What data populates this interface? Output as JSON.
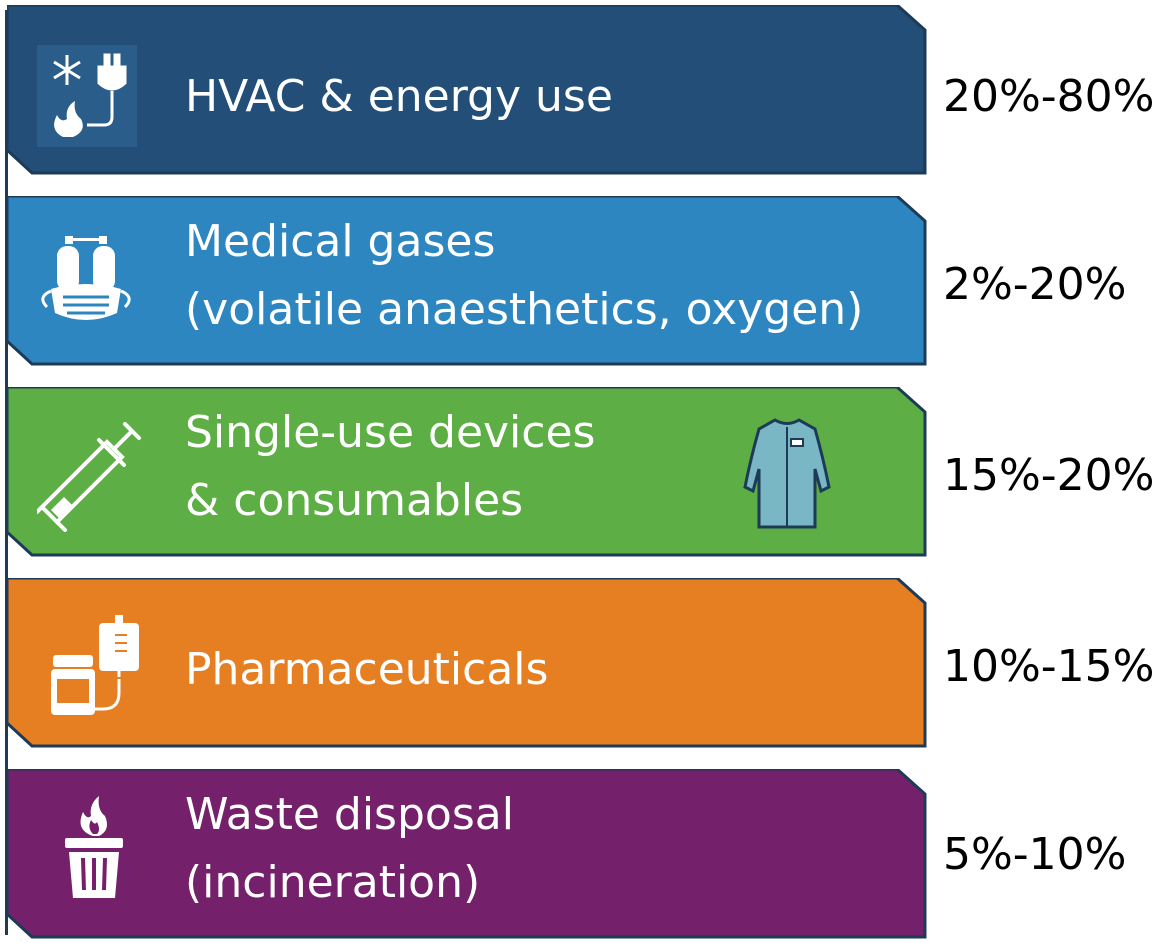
{
  "rows": [
    {
      "label1": "HVAC & energy use",
      "label2": "",
      "percent": "20%-80%",
      "color": "#224e78",
      "icon": "snowflake-plug-flame-icon"
    },
    {
      "label1": "Medical gases",
      "label2": "(volatile anaesthetics, oxygen)",
      "percent": "2%-20%",
      "color": "#2e86c1",
      "icon": "gas-cylinders-mask-icon"
    },
    {
      "label1": "Single-use devices",
      "label2": "& consumables",
      "percent": "15%-20%",
      "color": "#5daf45",
      "icon": "syringe-icon",
      "extra_icon": "surgical-gown-icon"
    },
    {
      "label1": "Pharmaceuticals",
      "label2": "",
      "percent": "10%-15%",
      "color": "#e67e22",
      "icon": "iv-bag-pill-bottle-icon"
    },
    {
      "label1": "Waste disposal",
      "label2": "(incineration)",
      "percent": "5%-10%",
      "color": "#75206b",
      "icon": "burning-bin-icon"
    }
  ],
  "colors": {
    "outline": "#1d3a57",
    "text_on_band": "#ffffff"
  }
}
